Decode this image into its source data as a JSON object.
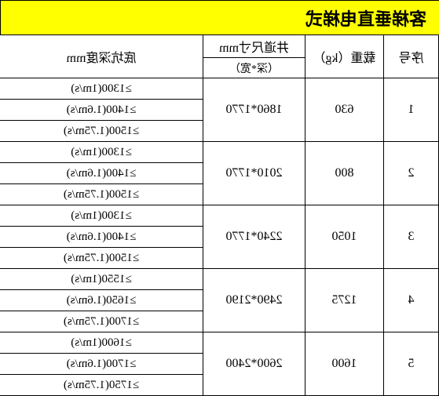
{
  "title": "客梯垂直电梯式",
  "headers": {
    "seq": "序号",
    "load": "载重（kg）",
    "shaft_main": "井道尺寸mm",
    "shaft_sub": "（深*宽）",
    "depth": "底坑深度mm"
  },
  "rows": [
    {
      "seq": "1",
      "load": "630",
      "shaft": "1860*1770",
      "depths": [
        "≥1300(1m/s)",
        "≥1400(1.6m/s)",
        "≥1500(1.75m/s)"
      ]
    },
    {
      "seq": "2",
      "load": "800",
      "shaft": "2010*1770",
      "depths": [
        "≥1300(1m/s)",
        "≥1400(1.6m/s)",
        "≥1500(1.75m/s)"
      ]
    },
    {
      "seq": "3",
      "load": "1050",
      "shaft": "2240*1770",
      "depths": [
        "≥1300(1m/s)",
        "≥1400(1.6m/s)",
        "≥1500(1.75m/s)"
      ]
    },
    {
      "seq": "4",
      "load": "1275",
      "shaft": "2490*2190",
      "depths": [
        "≥1550(1m/s)",
        "≥1650(1.6m/s)",
        "≥1700(1.75m/s)"
      ]
    },
    {
      "seq": "5",
      "load": "1600",
      "shaft": "2600*2400",
      "depths": [
        "≥1600(1m/s)",
        "≥1700(1.6m/s)",
        "≥1750(1.75m/s)"
      ]
    }
  ],
  "colors": {
    "title_bg": "#ffff00",
    "border": "#000000",
    "text": "#000000",
    "bg": "#ffffff"
  }
}
